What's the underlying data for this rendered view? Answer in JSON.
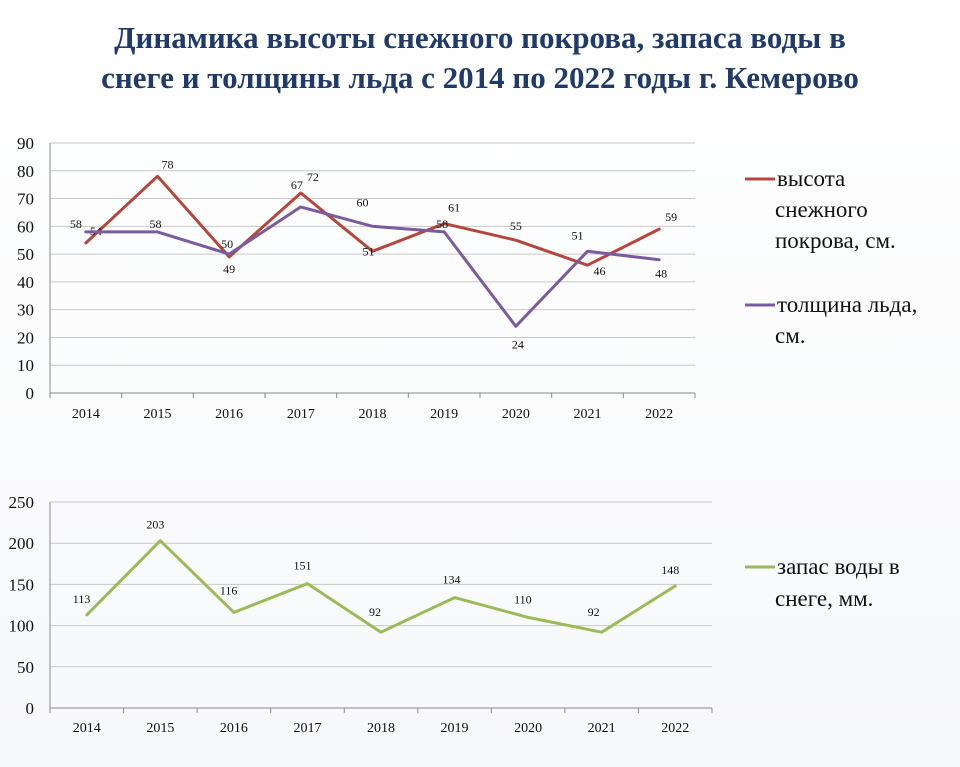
{
  "title_line1": "Динамика высоты снежного покрова, запаса воды в",
  "title_line2": "снеге и толщины льда с 2014 по 2022 годы г. Кемерово",
  "colors": {
    "snow": "#b5463d",
    "ice": "#7a5c9e",
    "water": "#9bbb59",
    "grid": "#c8c8c8"
  },
  "chart_data": [
    {
      "type": "line",
      "categories": [
        "2014",
        "2015",
        "2016",
        "2017",
        "2018",
        "2019",
        "2020",
        "2021",
        "2022"
      ],
      "ylim": [
        0,
        90
      ],
      "yticks": [
        "0",
        "10",
        "20",
        "30",
        "40",
        "50",
        "60",
        "70",
        "80",
        "90"
      ],
      "grid": true,
      "legend_position": "right",
      "series": [
        {
          "name": "высота снежного покрова, см.",
          "legend_lines": [
            "высота",
            "снежного",
            "покрова, см."
          ],
          "color": "#b5463d",
          "values": [
            54,
            78,
            49,
            72,
            51,
            61,
            55,
            46,
            59
          ],
          "labels": [
            "54",
            "78",
            "49",
            "72",
            "51",
            "61",
            "55",
            "46",
            "59"
          ]
        },
        {
          "name": "толщина льда, см.",
          "legend_lines": [
            "толщина льда,",
            "см."
          ],
          "color": "#7a5c9e",
          "values": [
            58,
            58,
            50,
            67,
            60,
            58,
            24,
            51,
            48
          ],
          "labels": [
            "58",
            "58",
            "50",
            "67",
            "60",
            "58",
            "24",
            "51",
            "48"
          ]
        }
      ]
    },
    {
      "type": "line",
      "categories": [
        "2014",
        "2015",
        "2016",
        "2017",
        "2018",
        "2019",
        "2020",
        "2021",
        "2022"
      ],
      "ylim": [
        0,
        250
      ],
      "yticks": [
        "0",
        "50",
        "100",
        "150",
        "200",
        "250"
      ],
      "grid": true,
      "legend_position": "right",
      "series": [
        {
          "name": "запас воды в снеге, мм.",
          "legend_lines": [
            "запас воды в",
            "снеге, мм."
          ],
          "color": "#9bbb59",
          "values": [
            113,
            203,
            116,
            151,
            92,
            134,
            110,
            92,
            148
          ],
          "labels": [
            "113",
            "203",
            "116",
            "151",
            "92",
            "134",
            "110",
            "92",
            "148"
          ]
        }
      ]
    }
  ]
}
